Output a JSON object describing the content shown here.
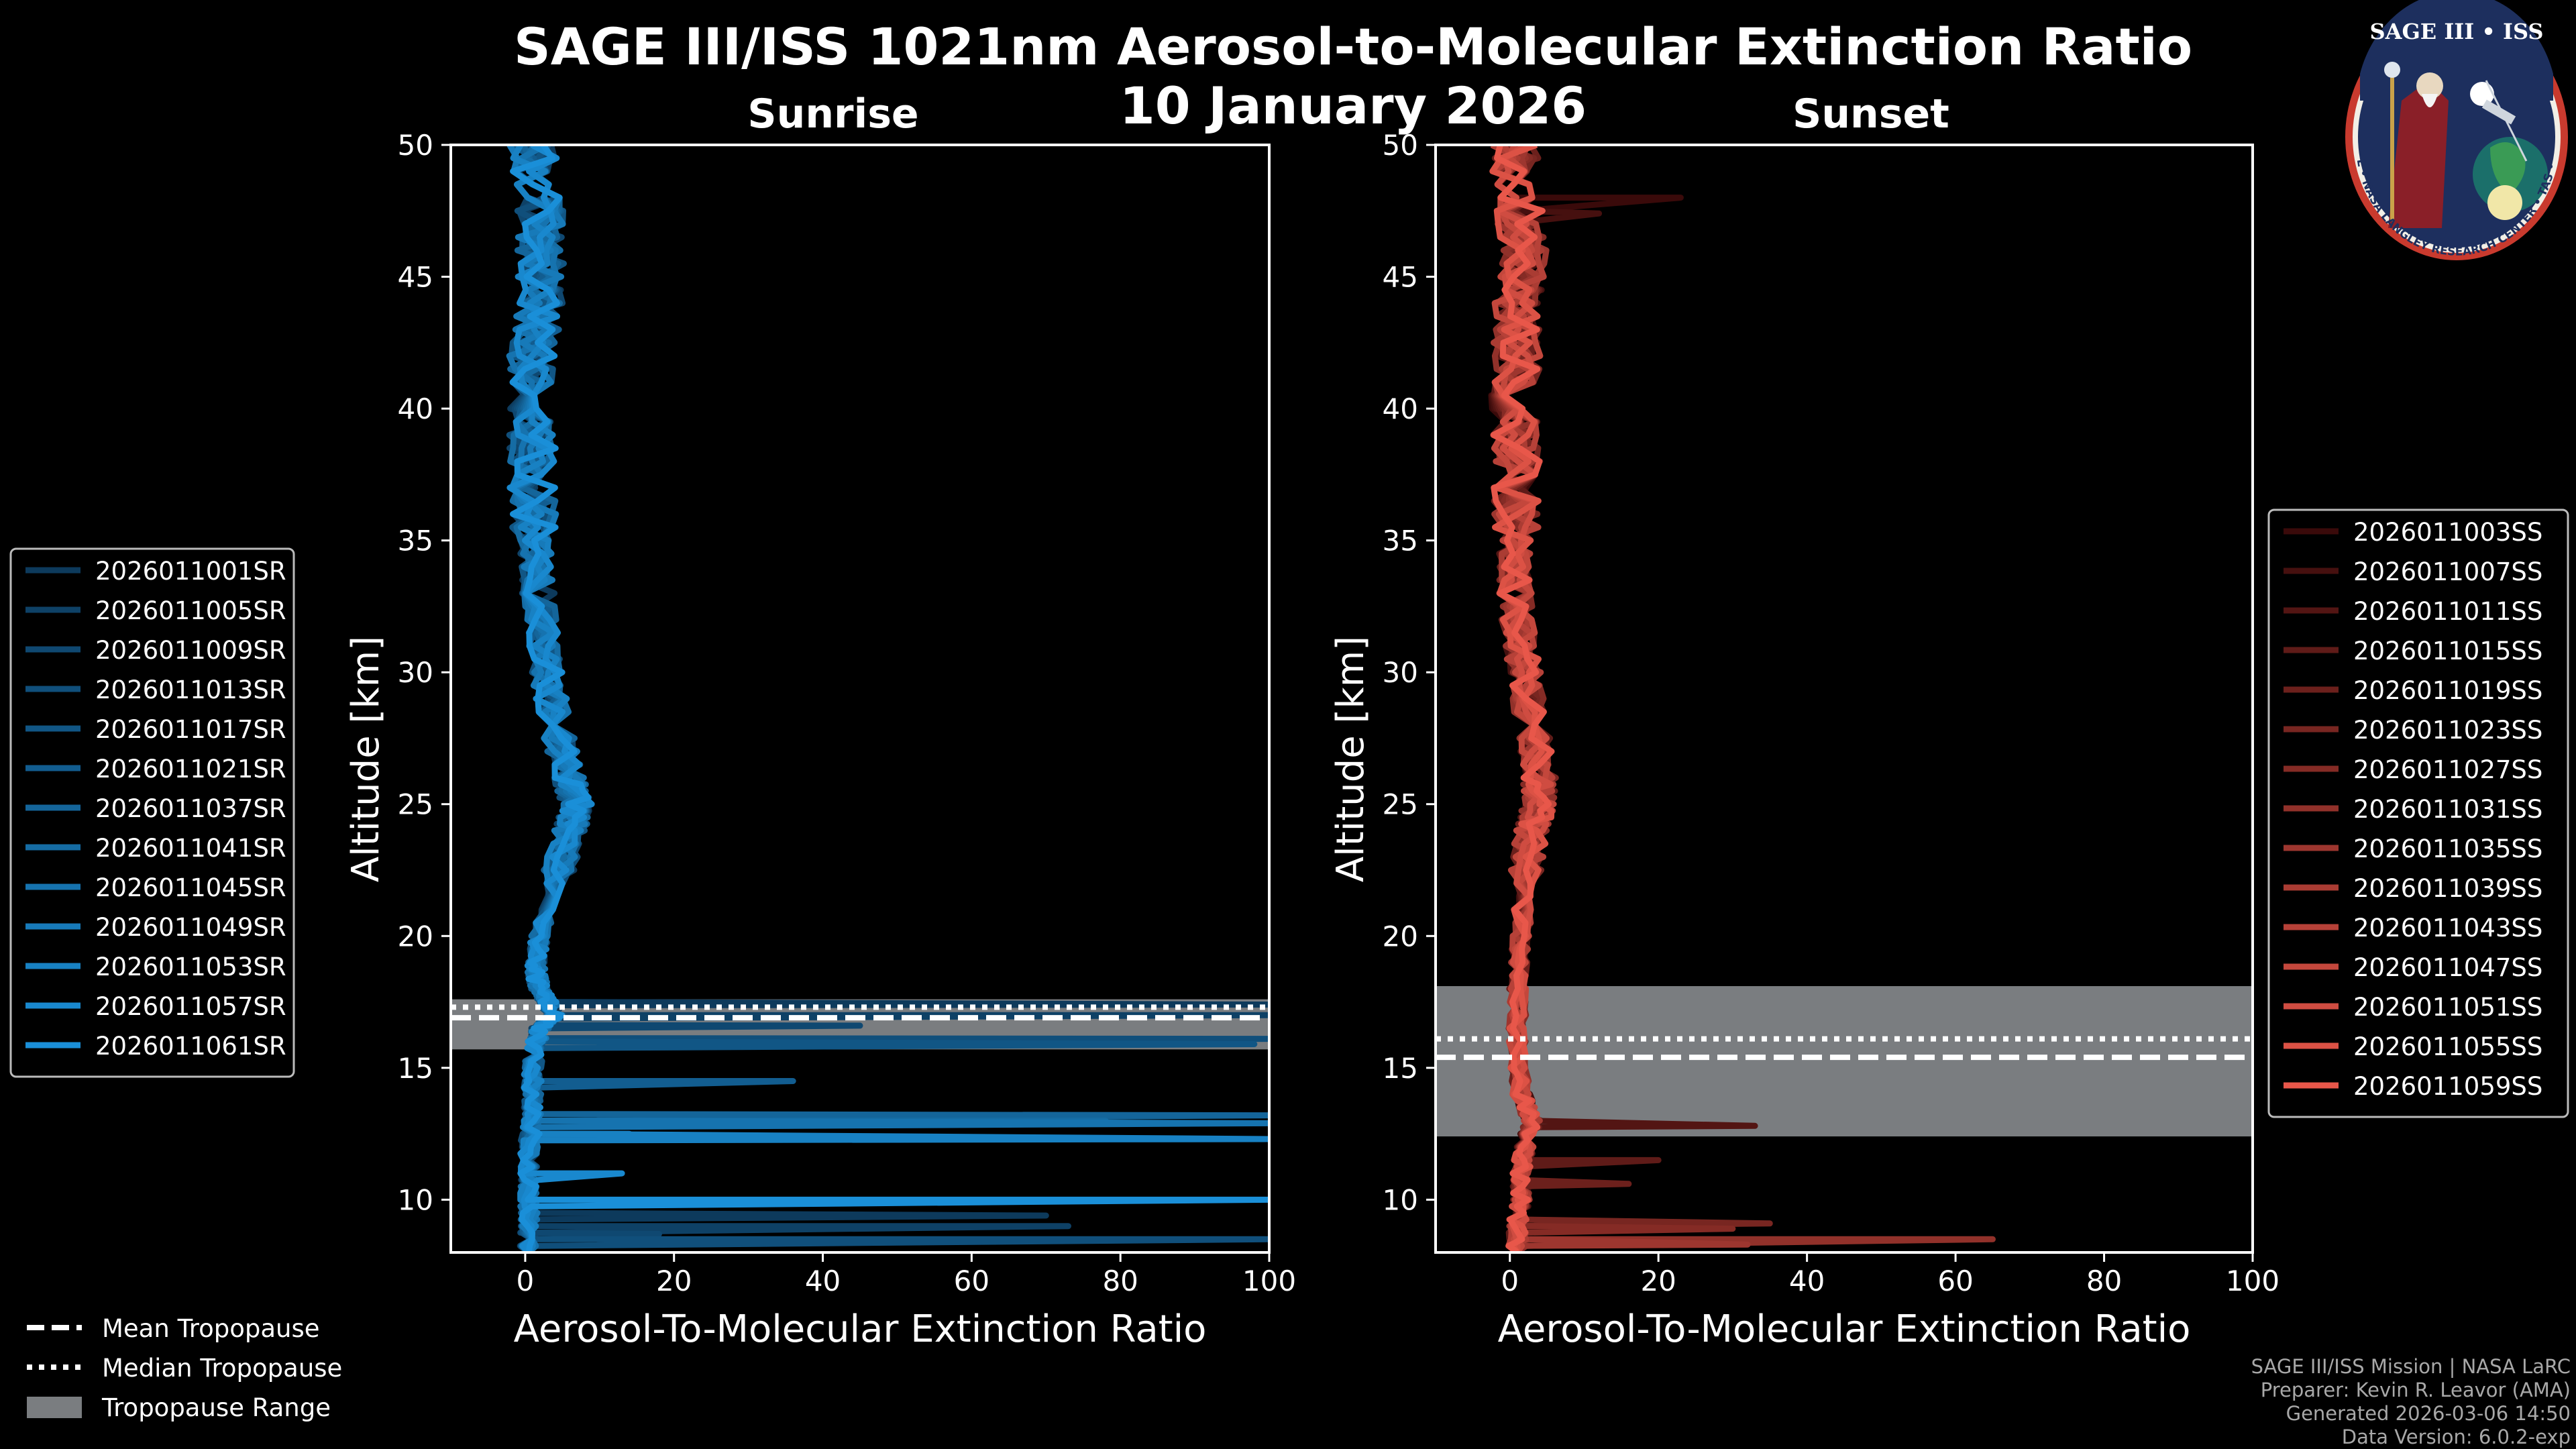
{
  "title_line1": "SAGE III/ISS 1021nm Aerosol-to-Molecular Extinction Ratio",
  "title_line2": "10 January 2026",
  "badge": {
    "top_text": "SAGE III • ISS",
    "ring_text": "BALL • NASA LANGLEY RESEARCH CENTER • TAS • ESA"
  },
  "footer": [
    "SAGE III/ISS Mission | NASA LaRC",
    "Preparer: Kevin R. Leavor (AMA)",
    "Generated 2026-03-06 14:50",
    "Data Version: 6.0.2-exp"
  ],
  "tropopause_legend": [
    "Mean Tropopause",
    "Median Tropopause",
    "Tropopause Range"
  ],
  "colors": {
    "sunrise": "#1a8fd8",
    "sunset": "#e8574a",
    "range": "#7a7d80"
  },
  "chart_data": [
    {
      "type": "line",
      "title": "Sunrise",
      "xlabel": "Aerosol-To-Molecular Extinction Ratio",
      "ylabel": "Altitude [km]",
      "xlim": [
        -10,
        100
      ],
      "ylim": [
        8,
        50
      ],
      "xticks": [
        0,
        20,
        40,
        60,
        80,
        100
      ],
      "yticks": [
        10,
        15,
        20,
        25,
        30,
        35,
        40,
        45,
        50
      ],
      "series": [
        "2026011001SR",
        "2026011005SR",
        "2026011009SR",
        "2026011013SR",
        "2026011017SR",
        "2026011021SR",
        "2026011037SR",
        "2026011041SR",
        "2026011045SR",
        "2026011049SR",
        "2026011053SR",
        "2026011057SR",
        "2026011061SR"
      ],
      "tropopause": {
        "mean": 16.9,
        "median": 17.3,
        "range": [
          15.7,
          17.6
        ]
      },
      "profile": {
        "alt": [
          50,
          48,
          46,
          44,
          42,
          40,
          38,
          36,
          34,
          32,
          30,
          28,
          26,
          25,
          24,
          22,
          20,
          19,
          18.5,
          18,
          17.5,
          17,
          16.5,
          16,
          15,
          14,
          13,
          12,
          11,
          10,
          9,
          8
        ],
        "x": [
          1,
          2,
          2,
          2,
          1,
          1,
          1,
          1,
          1.5,
          2,
          3,
          4,
          6,
          7,
          6,
          4,
          2,
          1.5,
          1.5,
          2,
          3,
          4,
          2,
          1.5,
          1,
          1,
          1,
          0.5,
          0.5,
          0.5,
          0.5,
          0.5
        ]
      },
      "spikes": [
        {
          "alt": 17.4,
          "x": 100
        },
        {
          "alt": 17.0,
          "x": 100
        },
        {
          "alt": 16.6,
          "x": 45
        },
        {
          "alt": 16.1,
          "x": 100
        },
        {
          "alt": 15.9,
          "x": 98
        },
        {
          "alt": 14.5,
          "x": 36
        },
        {
          "alt": 13.2,
          "x": 100
        },
        {
          "alt": 13.0,
          "x": 78
        },
        {
          "alt": 12.9,
          "x": 100
        },
        {
          "alt": 12.5,
          "x": 14
        },
        {
          "alt": 12.3,
          "x": 100
        },
        {
          "alt": 11.0,
          "x": 13
        },
        {
          "alt": 10.0,
          "x": 100
        },
        {
          "alt": 9.4,
          "x": 70
        },
        {
          "alt": 9.0,
          "x": 73
        },
        {
          "alt": 8.7,
          "x": 18
        },
        {
          "alt": 8.5,
          "x": 100
        }
      ]
    },
    {
      "type": "line",
      "title": "Sunset",
      "xlabel": "Aerosol-To-Molecular Extinction Ratio",
      "ylabel": "Altitude [km]",
      "xlim": [
        -10,
        100
      ],
      "ylim": [
        8,
        50
      ],
      "xticks": [
        0,
        20,
        40,
        60,
        80,
        100
      ],
      "yticks": [
        10,
        15,
        20,
        25,
        30,
        35,
        40,
        45,
        50
      ],
      "series": [
        "2026011003SS",
        "2026011007SS",
        "2026011011SS",
        "2026011015SS",
        "2026011019SS",
        "2026011023SS",
        "2026011027SS",
        "2026011031SS",
        "2026011035SS",
        "2026011039SS",
        "2026011043SS",
        "2026011047SS",
        "2026011051SS",
        "2026011055SS",
        "2026011059SS"
      ],
      "tropopause": {
        "mean": 15.4,
        "median": 16.1,
        "range": [
          12.4,
          18.1
        ]
      },
      "profile": {
        "alt": [
          50,
          48,
          46,
          44,
          42,
          40,
          38,
          36,
          34,
          32,
          30,
          28,
          26,
          25,
          24,
          22,
          20,
          18,
          16,
          14,
          13,
          12,
          11,
          10,
          9,
          8
        ],
        "x": [
          0.5,
          1,
          2,
          1,
          1,
          0.5,
          1,
          1,
          0.5,
          1,
          2,
          3,
          4,
          4,
          3,
          2,
          1.5,
          1,
          1,
          1.5,
          3,
          2,
          1.5,
          1.5,
          1,
          1
        ]
      },
      "spikes": [
        {
          "alt": 48.0,
          "x": 23
        },
        {
          "alt": 47.4,
          "x": 12
        },
        {
          "alt": 12.8,
          "x": 33
        },
        {
          "alt": 11.5,
          "x": 20
        },
        {
          "alt": 10.6,
          "x": 16
        },
        {
          "alt": 9.1,
          "x": 35
        },
        {
          "alt": 8.9,
          "x": 30
        },
        {
          "alt": 8.5,
          "x": 65
        },
        {
          "alt": 8.3,
          "x": 32
        }
      ]
    }
  ]
}
